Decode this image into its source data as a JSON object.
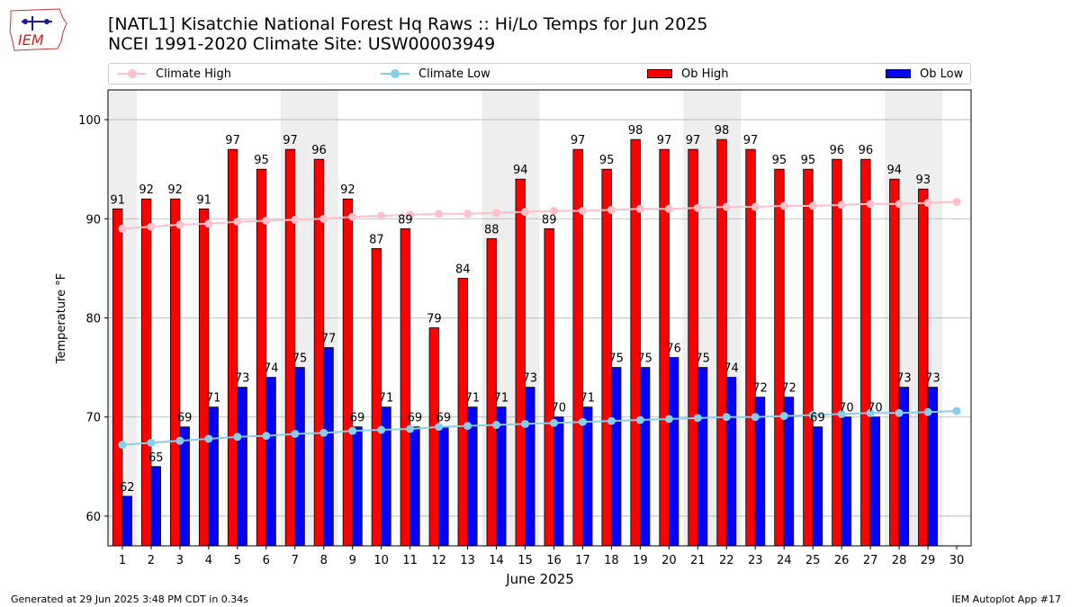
{
  "title_line1": "[NATL1] Kisatchie National Forest Hq Raws :: Hi/Lo Temps for Jun 2025",
  "title_line2": "NCEI 1991-2020 Climate Site: USW00003949",
  "logo_text": "IEM",
  "footer_left": "Generated at 29 Jun 2025 3:48 PM CDT in 0.34s",
  "footer_right": "IEM Autoplot App #17",
  "colors": {
    "ob_high": "#ff0000",
    "ob_low": "#0000ff",
    "climate_high": "#ffc0cb",
    "climate_low": "#87ceeb",
    "weekend_shade": "#eeeeee",
    "grid": "#b0b0b0"
  },
  "chart_data": {
    "type": "bar",
    "title": "[NATL1] Kisatchie National Forest Hq Raws :: Hi/Lo Temps for Jun 2025",
    "xlabel": "June 2025",
    "ylabel": "Temperature °F",
    "ylim": [
      57,
      103
    ],
    "xlim": [
      0.5,
      30.5
    ],
    "yticks": [
      60,
      70,
      80,
      90,
      100
    ],
    "grid": "horizontal",
    "legend_position": "top",
    "categories": [
      1,
      2,
      3,
      4,
      5,
      6,
      7,
      8,
      9,
      10,
      11,
      12,
      13,
      14,
      15,
      16,
      17,
      18,
      19,
      20,
      21,
      22,
      23,
      24,
      25,
      26,
      27,
      28,
      29,
      30
    ],
    "weekend_days": [
      1,
      7,
      8,
      14,
      15,
      21,
      22,
      28,
      29
    ],
    "series": [
      {
        "name": "Ob High",
        "kind": "bar",
        "values": [
          91,
          92,
          92,
          91,
          97,
          95,
          97,
          96,
          92,
          87,
          89,
          79,
          84,
          88,
          94,
          89,
          97,
          95,
          98,
          97,
          97,
          98,
          97,
          95,
          95,
          96,
          96,
          94,
          93,
          null
        ]
      },
      {
        "name": "Ob Low",
        "kind": "bar",
        "values": [
          62,
          65,
          69,
          71,
          73,
          74,
          75,
          77,
          69,
          71,
          69,
          69,
          71,
          71,
          73,
          70,
          71,
          75,
          75,
          76,
          75,
          74,
          72,
          72,
          69,
          70,
          70,
          73,
          73,
          null
        ]
      },
      {
        "name": "Climate High",
        "kind": "line",
        "values": [
          89.0,
          89.2,
          89.4,
          89.5,
          89.7,
          89.8,
          89.9,
          90.0,
          90.2,
          90.3,
          90.4,
          90.5,
          90.5,
          90.6,
          90.7,
          90.8,
          90.8,
          90.9,
          91.0,
          91.0,
          91.1,
          91.2,
          91.2,
          91.3,
          91.3,
          91.4,
          91.5,
          91.5,
          91.6,
          91.7
        ]
      },
      {
        "name": "Climate Low",
        "kind": "line",
        "values": [
          67.2,
          67.4,
          67.6,
          67.8,
          68.0,
          68.1,
          68.3,
          68.4,
          68.6,
          68.7,
          68.8,
          69.0,
          69.1,
          69.2,
          69.3,
          69.4,
          69.5,
          69.6,
          69.7,
          69.8,
          69.9,
          70.0,
          70.0,
          70.1,
          70.2,
          70.3,
          70.4,
          70.4,
          70.5,
          70.6
        ]
      }
    ]
  }
}
